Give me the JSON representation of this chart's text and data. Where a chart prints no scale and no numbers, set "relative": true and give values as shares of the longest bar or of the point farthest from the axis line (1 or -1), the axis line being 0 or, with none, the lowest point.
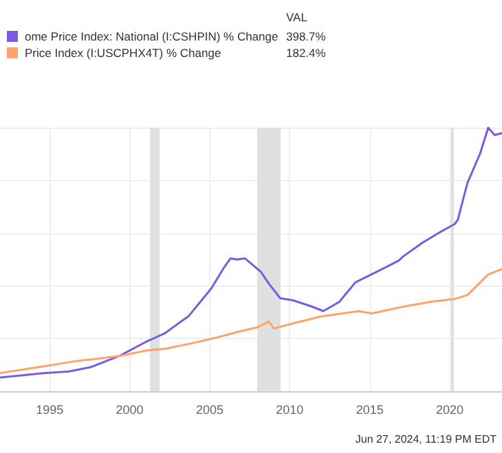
{
  "chart_data": {
    "type": "line",
    "relative": true,
    "xlim": [
      1991.9,
      2023.26
    ],
    "xticks": [
      1995,
      2000,
      2005,
      2010,
      2015,
      2020
    ],
    "series": [
      {
        "name": "ome Price Index: National (I:CSHPIN) % Change",
        "color": "#7b5ce0",
        "x": [
          1991.9,
          1994.7,
          1996.2,
          1997.6,
          1999.4,
          2001.1,
          2002.2,
          2003.7,
          2005.1,
          2005.9,
          2006.3,
          2006.7,
          2007.2,
          2008.2,
          2008.7,
          2009.4,
          2010.2,
          2011.4,
          2012.1,
          2013.1,
          2014.1,
          2015.4,
          2016.8,
          2017.1,
          2018.3,
          2019.4,
          2020.3,
          2020.5,
          2021.1,
          2021.9,
          2022.4,
          2022.8,
          2023.26
        ],
        "values": [
          0.052,
          0.069,
          0.075,
          0.092,
          0.135,
          0.19,
          0.22,
          0.286,
          0.39,
          0.47,
          0.504,
          0.5,
          0.504,
          0.453,
          0.408,
          0.353,
          0.345,
          0.321,
          0.304,
          0.339,
          0.413,
          0.452,
          0.495,
          0.512,
          0.564,
          0.604,
          0.634,
          0.651,
          0.79,
          0.903,
          1,
          0.972,
          0.979
        ]
      },
      {
        "name": "Price Index (I:USCPHX4T) % Change",
        "color": "#ffa36c",
        "x": [
          1991.9,
          1994.7,
          1996.5,
          1998.2,
          1999.4,
          2001.1,
          2002.2,
          2003.9,
          2005.4,
          2006.8,
          2008.0,
          2008.7,
          2009.0,
          2010.2,
          2011.9,
          2014.3,
          2015.1,
          2017.1,
          2018.8,
          2020.3,
          2021.1,
          2022.4,
          2023.26
        ],
        "values": [
          0.069,
          0.095,
          0.113,
          0.125,
          0.134,
          0.155,
          0.161,
          0.182,
          0.203,
          0.226,
          0.243,
          0.264,
          0.238,
          0.257,
          0.283,
          0.304,
          0.295,
          0.321,
          0.339,
          0.35,
          0.365,
          0.443,
          0.464
        ]
      }
    ],
    "bands": [
      {
        "axis": "x",
        "from": 2001.27,
        "to": 2001.87,
        "color": "#e0e0e0"
      },
      {
        "axis": "x",
        "from": 2007.97,
        "to": 2009.43,
        "color": "#e0e0e0"
      },
      {
        "axis": "x",
        "from": 2020.08,
        "to": 2020.25,
        "color": "#e0e0e0"
      }
    ],
    "annotations": [
      "VAL",
      "398.7%",
      "182.4%",
      "Jun 27, 2024, 11:19 PM EDT"
    ],
    "grid": true,
    "legend": "top left",
    "marker": "none",
    "line_style": "solid"
  }
}
